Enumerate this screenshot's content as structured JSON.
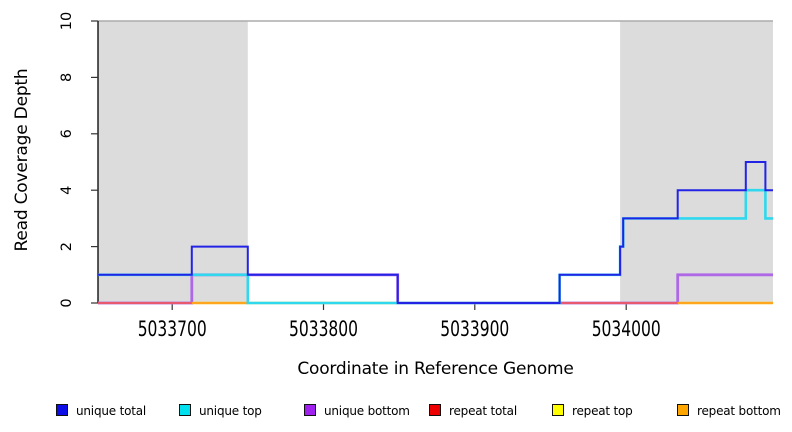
{
  "chart_data": {
    "type": "line",
    "subtype": "step-coverage",
    "title": "",
    "xlabel": "Coordinate in Reference Genome",
    "ylabel": "Read Coverage Depth",
    "xlim": [
      5033651,
      5034097
    ],
    "ylim": [
      0,
      10
    ],
    "xticks": [
      5033700,
      5033800,
      5033900,
      5034000
    ],
    "yticks": [
      0,
      2,
      4,
      6,
      8,
      10
    ],
    "grid": false,
    "legend_position": "bottom",
    "axis_color": "#000000",
    "shaded_regions": [
      {
        "x0": 5033651,
        "x1": 5033750,
        "color": "#DCDCDC",
        "meaning": "shaded-region"
      },
      {
        "x0": 5033996,
        "x1": 5034097,
        "color": "#DCDCDC",
        "meaning": "shaded-region"
      }
    ],
    "top_boundary_line": {
      "y": 10,
      "color": "#ABABAB"
    },
    "series": [
      {
        "name": "unique total",
        "legend_color": "#0D0DE8",
        "line_color": "#2323E6",
        "width": 2,
        "z": 6,
        "steps": [
          [
            5033651,
            1
          ],
          [
            5033713,
            2
          ],
          [
            5033750,
            1
          ],
          [
            5033849,
            0
          ],
          [
            5033956,
            1
          ],
          [
            5033996,
            2
          ],
          [
            5033998,
            3
          ],
          [
            5034034,
            4
          ],
          [
            5034079,
            5
          ],
          [
            5034092,
            4
          ]
        ]
      },
      {
        "name": "unique top",
        "legend_color": "#00E0EE",
        "line_color": "#30D8EE",
        "width": 2.6,
        "z": 5,
        "steps": [
          [
            5033651,
            1
          ],
          [
            5033750,
            0
          ],
          [
            5033956,
            1
          ],
          [
            5033996,
            2
          ],
          [
            5033998,
            3
          ],
          [
            5034079,
            4
          ],
          [
            5034092,
            3
          ]
        ]
      },
      {
        "name": "unique bottom",
        "legend_color": "#A020F0",
        "line_color": "#AE68E6",
        "width": 2.8,
        "z": 2,
        "steps": [
          [
            5033651,
            0
          ],
          [
            5033713,
            1
          ],
          [
            5033849,
            0
          ],
          [
            5034034,
            1
          ]
        ]
      },
      {
        "name": "repeat total",
        "legend_color": "#EE0000",
        "line_color": "#E8586E",
        "width": 2,
        "z": 3,
        "steps": [
          [
            5033651,
            0
          ]
        ]
      },
      {
        "name": "repeat top",
        "legend_color": "#FFFF00",
        "line_color": "#EDDC4E",
        "width": 2.4,
        "z": 1,
        "steps": [
          [
            5033651,
            0
          ]
        ]
      },
      {
        "name": "repeat bottom",
        "legend_color": "#FFA500",
        "line_color": "#FFA51E",
        "width": 2.2,
        "z": 4,
        "steps": [
          [
            5033651,
            0
          ]
        ],
        "visible_ranges": [
          [
            5033713,
            5033750
          ],
          [
            5034034,
            5034097
          ]
        ]
      }
    ]
  }
}
